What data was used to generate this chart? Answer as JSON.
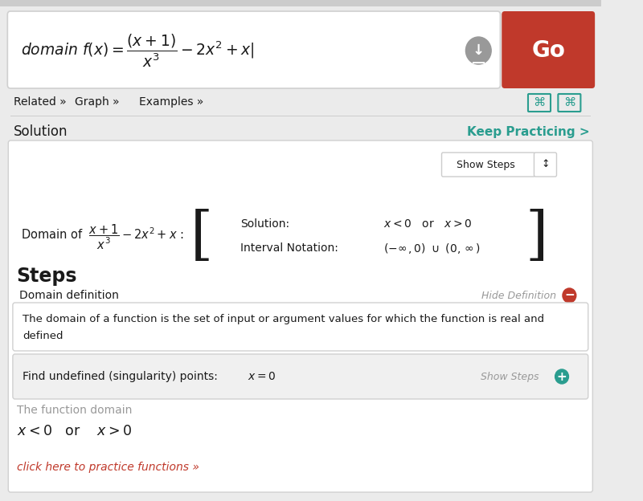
{
  "bg_color": "#ebebeb",
  "input_box_color": "#ffffff",
  "go_button_color": "#c0392b",
  "go_button_text": "Go",
  "nav_links": [
    "Related »",
    "Graph »",
    "Examples »"
  ],
  "solution_label": "Solution",
  "keep_practicing": "Keep Practicing >",
  "keep_practicing_color": "#2a9d8f",
  "solution_box_color": "#ffffff",
  "show_steps_btn": "Show Steps",
  "solution_text": "Solution:",
  "interval_notation_text": "Interval Notation:",
  "steps_title": "Steps",
  "domain_definition_label": "Domain definition",
  "hide_definition_text": "Hide Definition",
  "definition_line1": "The domain of a function is the set of input or argument values for which the function is real and",
  "definition_line2": "defined",
  "singularity_section_bg": "#f0f0f0",
  "singularity_text": "Find undefined (singularity) points:",
  "show_steps_text": "Show Steps",
  "function_domain_label": "The function domain",
  "click_here_text": "click here to practice functions »",
  "click_here_color": "#c0392b",
  "teal_color": "#2a9d8f",
  "gray_text_color": "#999999",
  "dark_text_color": "#1a1a1a",
  "border_color": "#d0d0d0",
  "top_strip_color": "#cccccc",
  "dl_icon_color": "#999999"
}
